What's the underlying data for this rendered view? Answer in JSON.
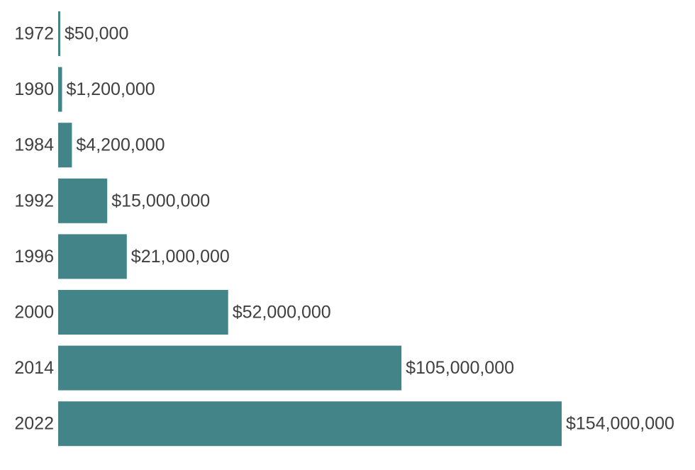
{
  "chart_data": {
    "type": "bar",
    "orientation": "horizontal",
    "title": "",
    "xlabel": "",
    "ylabel": "",
    "grid": false,
    "legend": "none",
    "bar_color": "#428488",
    "label_color": "#404040",
    "categories": [
      "1972",
      "1980",
      "1984",
      "1992",
      "1996",
      "2000",
      "2014",
      "2022"
    ],
    "values": [
      50000,
      1200000,
      4200000,
      15000000,
      21000000,
      52000000,
      105000000,
      154000000
    ],
    "value_labels": [
      "$50,000",
      "$1,200,000",
      "$4,200,000",
      "$15,000,000",
      "$21,000,000",
      "$52,000,000",
      "$105,000,000",
      "$154,000,000"
    ],
    "xlim": [
      0,
      154000000
    ]
  }
}
